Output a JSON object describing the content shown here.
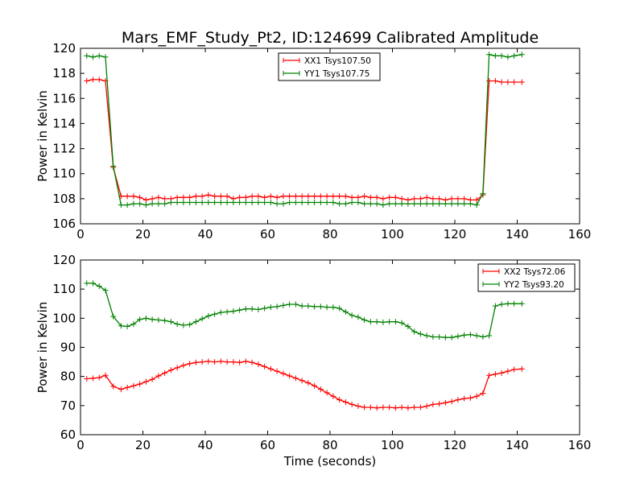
{
  "chart_data": [
    {
      "type": "line",
      "title": "Mars_EMF_Study_Pt2, ID:124699 Calibrated Amplitude",
      "xlabel": "",
      "ylabel": "Power in Kelvin",
      "xlim": [
        0,
        160
      ],
      "ylim": [
        106,
        120
      ],
      "xticks": [
        0,
        20,
        40,
        60,
        80,
        100,
        120,
        140,
        160
      ],
      "yticks": [
        106,
        108,
        110,
        112,
        114,
        116,
        118,
        120
      ],
      "legend": "top-center",
      "series": [
        {
          "name": "XX1 Tsys107.50",
          "color": "#ff0000",
          "x": [
            2,
            4,
            6,
            8,
            10.5,
            13,
            15,
            17,
            19,
            21,
            23,
            25,
            27,
            29,
            31,
            33,
            35,
            37,
            39,
            41,
            43,
            45,
            47,
            49,
            51,
            53,
            55,
            57,
            59,
            61,
            63,
            65,
            67,
            69,
            71,
            73,
            75,
            77,
            79,
            81,
            83,
            85,
            87,
            89,
            91,
            93,
            95,
            97,
            99,
            101,
            103,
            105,
            107,
            109,
            111,
            113,
            115,
            117,
            119,
            121,
            123,
            125,
            127,
            129,
            131,
            133,
            135,
            137,
            139,
            141.5
          ],
          "y": [
            117.4,
            117.5,
            117.5,
            117.4,
            110.5,
            108.2,
            108.2,
            108.2,
            108.1,
            107.9,
            108.0,
            108.1,
            108.0,
            108.0,
            108.1,
            108.1,
            108.1,
            108.2,
            108.2,
            108.3,
            108.2,
            108.2,
            108.2,
            108.0,
            108.1,
            108.1,
            108.2,
            108.2,
            108.1,
            108.2,
            108.1,
            108.2,
            108.2,
            108.2,
            108.2,
            108.2,
            108.2,
            108.2,
            108.2,
            108.2,
            108.2,
            108.2,
            108.1,
            108.1,
            108.2,
            108.1,
            108.1,
            108.0,
            108.1,
            108.1,
            108.0,
            107.9,
            108.0,
            108.0,
            108.1,
            108.0,
            108.0,
            107.9,
            108.0,
            108.0,
            108.0,
            107.9,
            107.9,
            108.3,
            117.4,
            117.4,
            117.3,
            117.3,
            117.3,
            117.3
          ]
        },
        {
          "name": "YY1 Tsys107.75",
          "color": "#008000",
          "x": [
            2,
            4,
            6,
            8,
            10.5,
            13,
            15,
            17,
            19,
            21,
            23,
            25,
            27,
            29,
            31,
            33,
            35,
            37,
            39,
            41,
            43,
            45,
            47,
            49,
            51,
            53,
            55,
            57,
            59,
            61,
            63,
            65,
            67,
            69,
            71,
            73,
            75,
            77,
            79,
            81,
            83,
            85,
            87,
            89,
            91,
            93,
            95,
            97,
            99,
            101,
            103,
            105,
            107,
            109,
            111,
            113,
            115,
            117,
            119,
            121,
            123,
            125,
            127,
            129,
            131,
            133,
            135,
            137,
            139,
            141.5
          ],
          "y": [
            119.4,
            119.3,
            119.4,
            119.3,
            110.6,
            107.5,
            107.5,
            107.6,
            107.6,
            107.5,
            107.6,
            107.6,
            107.6,
            107.7,
            107.7,
            107.7,
            107.7,
            107.7,
            107.7,
            107.7,
            107.7,
            107.7,
            107.7,
            107.7,
            107.7,
            107.7,
            107.7,
            107.7,
            107.7,
            107.7,
            107.6,
            107.6,
            107.7,
            107.7,
            107.7,
            107.7,
            107.7,
            107.7,
            107.7,
            107.7,
            107.6,
            107.6,
            107.7,
            107.7,
            107.6,
            107.6,
            107.6,
            107.5,
            107.6,
            107.6,
            107.6,
            107.6,
            107.6,
            107.6,
            107.6,
            107.6,
            107.6,
            107.6,
            107.6,
            107.6,
            107.6,
            107.6,
            107.5,
            108.4,
            119.5,
            119.4,
            119.4,
            119.3,
            119.4,
            119.5
          ]
        }
      ]
    },
    {
      "type": "line",
      "title": "",
      "xlabel": "Time (seconds)",
      "ylabel": "Power in Kelvin",
      "xlim": [
        0,
        160
      ],
      "ylim": [
        60,
        120
      ],
      "xticks": [
        0,
        20,
        40,
        60,
        80,
        100,
        120,
        140,
        160
      ],
      "yticks": [
        60,
        70,
        80,
        90,
        100,
        110,
        120
      ],
      "legend": "top-right",
      "series": [
        {
          "name": "XX2 Tsys72.06",
          "color": "#ff0000",
          "x": [
            2,
            4,
            6,
            8,
            10.5,
            13,
            15,
            17,
            19,
            21,
            23,
            25,
            27,
            29,
            31,
            33,
            35,
            37,
            39,
            41,
            43,
            45,
            47,
            49,
            51,
            53,
            55,
            57,
            59,
            61,
            63,
            65,
            67,
            69,
            71,
            73,
            75,
            77,
            79,
            81,
            83,
            85,
            87,
            89,
            91,
            93,
            95,
            97,
            99,
            101,
            103,
            105,
            107,
            109,
            111,
            113,
            115,
            117,
            119,
            121,
            123,
            125,
            127,
            129,
            131,
            133,
            135,
            137,
            139,
            141.5
          ],
          "y": [
            79.2,
            79.4,
            79.6,
            80.4,
            76.6,
            75.6,
            76.2,
            76.8,
            77.4,
            78.2,
            79.0,
            80.2,
            81.2,
            82.2,
            83.0,
            83.8,
            84.4,
            84.8,
            85.0,
            85.2,
            85.0,
            85.2,
            85.0,
            85.0,
            84.8,
            85.2,
            84.8,
            84.2,
            83.4,
            82.6,
            81.8,
            81.0,
            80.2,
            79.4,
            78.6,
            77.8,
            76.8,
            75.6,
            74.4,
            73.2,
            72.0,
            71.2,
            70.4,
            69.8,
            69.4,
            69.4,
            69.2,
            69.4,
            69.4,
            69.2,
            69.4,
            69.2,
            69.4,
            69.4,
            69.8,
            70.4,
            70.6,
            71.0,
            71.4,
            72.0,
            72.4,
            72.6,
            73.2,
            74.2,
            80.4,
            80.8,
            81.2,
            81.8,
            82.4,
            82.6
          ]
        },
        {
          "name": "YY2 Tsys93.20",
          "color": "#008000",
          "x": [
            2,
            4,
            6,
            8,
            10.5,
            13,
            15,
            17,
            19,
            21,
            23,
            25,
            27,
            29,
            31,
            33,
            35,
            37,
            39,
            41,
            43,
            45,
            47,
            49,
            51,
            53,
            55,
            57,
            59,
            61,
            63,
            65,
            67,
            69,
            71,
            73,
            75,
            77,
            79,
            81,
            83,
            85,
            87,
            89,
            91,
            93,
            95,
            97,
            99,
            101,
            103,
            105,
            107,
            109,
            111,
            113,
            115,
            117,
            119,
            121,
            123,
            125,
            127,
            129,
            131,
            133,
            135,
            137,
            139,
            141.5
          ],
          "y": [
            112.0,
            112.0,
            111.0,
            109.6,
            100.6,
            97.4,
            97.2,
            98.0,
            99.6,
            100.0,
            99.6,
            99.4,
            99.2,
            98.8,
            98.0,
            97.6,
            97.8,
            98.8,
            99.8,
            100.8,
            101.4,
            102.0,
            102.2,
            102.4,
            102.8,
            103.2,
            103.2,
            103.0,
            103.4,
            103.8,
            104.0,
            104.4,
            104.8,
            104.8,
            104.2,
            104.2,
            104.0,
            104.0,
            103.8,
            103.8,
            103.4,
            102.2,
            101.0,
            100.4,
            99.4,
            98.8,
            98.8,
            98.6,
            98.8,
            98.8,
            98.4,
            97.2,
            95.4,
            94.6,
            94.0,
            93.6,
            93.6,
            93.4,
            93.4,
            93.8,
            94.2,
            94.4,
            94.0,
            93.6,
            94.0,
            104.2,
            104.8,
            105.0,
            105.0,
            105.0
          ]
        }
      ]
    }
  ]
}
